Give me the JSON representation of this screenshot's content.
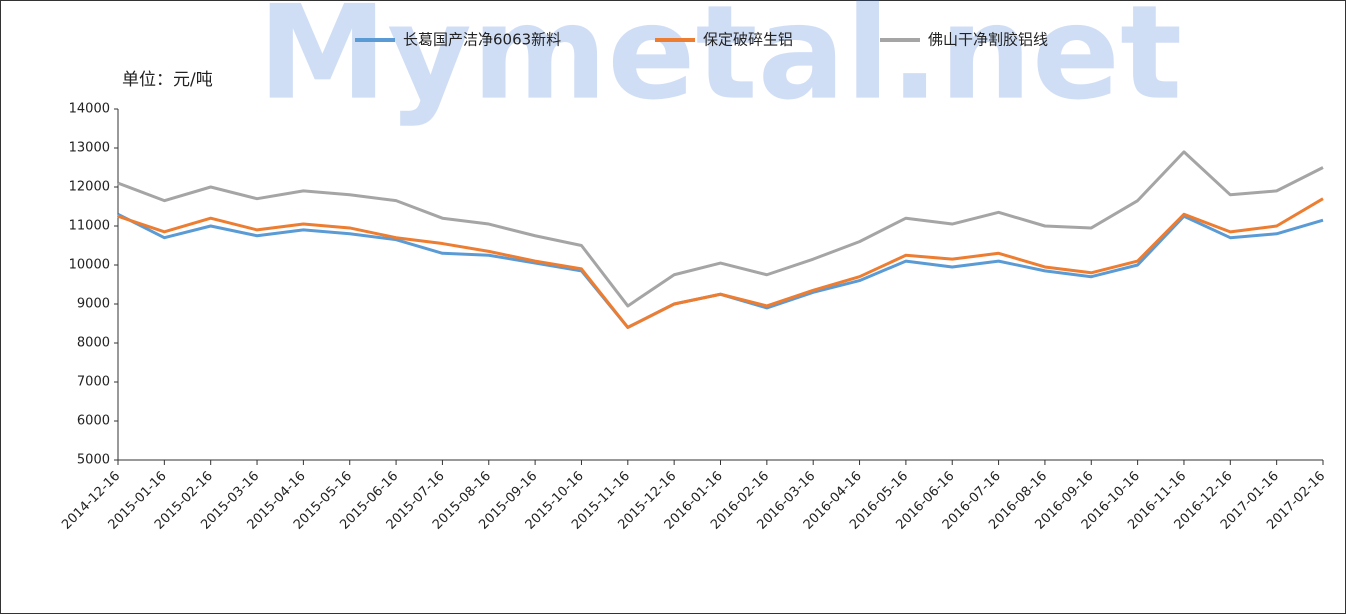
{
  "chart_data": {
    "type": "line",
    "watermark": "Mymetal.net",
    "unit_label": "单位：元/吨",
    "categories": [
      "2014-12-16",
      "2015-01-16",
      "2015-02-16",
      "2015-03-16",
      "2015-04-16",
      "2015-05-16",
      "2015-06-16",
      "2015-07-16",
      "2015-08-16",
      "2015-09-16",
      "2015-10-16",
      "2015-11-16",
      "2015-12-16",
      "2016-01-16",
      "2016-02-16",
      "2016-03-16",
      "2016-04-16",
      "2016-05-16",
      "2016-06-16",
      "2016-07-16",
      "2016-08-16",
      "2016-09-16",
      "2016-10-16",
      "2016-11-16",
      "2016-12-16",
      "2017-01-16",
      "2017-02-16"
    ],
    "series": [
      {
        "name": "长葛国产洁净6063新料",
        "color": "#5b9bd5",
        "values": [
          11300,
          10700,
          11000,
          10750,
          10900,
          10800,
          10650,
          10300,
          10250,
          10050,
          9850,
          8400,
          9000,
          9250,
          8900,
          9300,
          9600,
          10100,
          9950,
          10100,
          9850,
          9700,
          10000,
          11250,
          10700,
          10800,
          11150
        ]
      },
      {
        "name": "保定破碎生铝",
        "color": "#ed7d31",
        "values": [
          11250,
          10850,
          11200,
          10900,
          11050,
          10950,
          10700,
          10550,
          10350,
          10100,
          9900,
          8400,
          9000,
          9250,
          8950,
          9350,
          9700,
          10250,
          10150,
          10300,
          9950,
          9800,
          10100,
          11300,
          10850,
          11000,
          11700
        ]
      },
      {
        "name": "佛山干净割胶铝线",
        "color": "#a5a5a5",
        "values": [
          12100,
          11650,
          12000,
          11700,
          11900,
          11800,
          11650,
          11200,
          11050,
          10750,
          10500,
          8950,
          9750,
          10050,
          9750,
          10150,
          10600,
          11200,
          11050,
          11350,
          11000,
          10950,
          11650,
          12900,
          11800,
          11900,
          12500
        ]
      }
    ],
    "ylim": [
      5000,
      14000
    ],
    "yticks": [
      5000,
      6000,
      7000,
      8000,
      9000,
      10000,
      11000,
      12000,
      13000,
      14000
    ],
    "legend": "top"
  }
}
